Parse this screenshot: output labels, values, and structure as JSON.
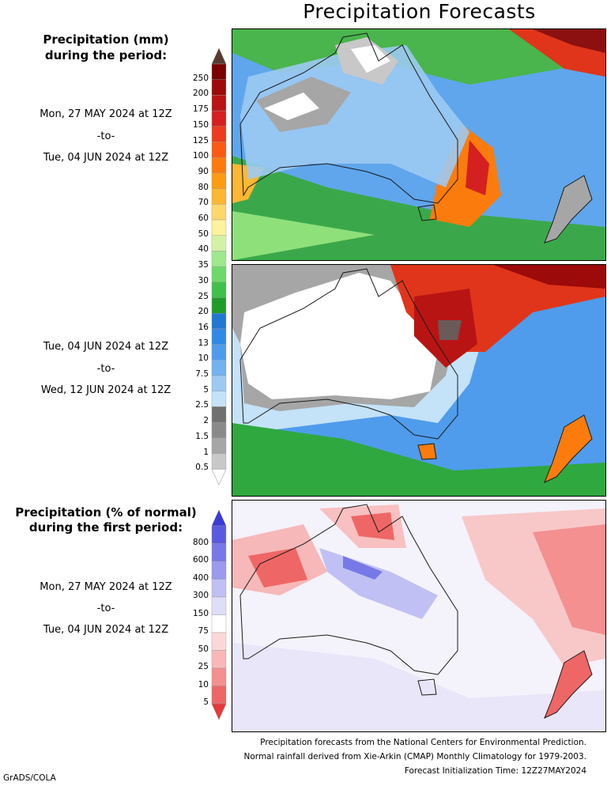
{
  "title": "Precipitation Forecasts",
  "panel1": {
    "legend_head_1": "Precipitation (mm)",
    "legend_head_2": "during the period:",
    "start": "Mon, 27 MAY 2024 at 12Z",
    "sep": "-to-",
    "end": "Tue, 04 JUN 2024 at 12Z"
  },
  "panel2": {
    "start": "Tue, 04 JUN 2024 at 12Z",
    "sep": "-to-",
    "end": "Wed, 12 JUN 2024 at 12Z"
  },
  "panel3": {
    "legend_head_1": "Precipitation (% of normal)",
    "legend_head_2": "during the first period:",
    "start": "Mon, 27 MAY 2024 at 12Z",
    "sep": "-to-",
    "end": "Tue, 04 JUN 2024 at 12Z"
  },
  "mm_scale": {
    "labels": [
      "250",
      "200",
      "175",
      "150",
      "125",
      "100",
      "90",
      "80",
      "70",
      "60",
      "50",
      "40",
      "35",
      "30",
      "25",
      "20",
      "16",
      "13",
      "10",
      "7.5",
      "5",
      "2.5",
      "2",
      "1.5",
      "1",
      "0.5"
    ],
    "colors": [
      "#7a0000",
      "#9c0a0a",
      "#b91414",
      "#d42020",
      "#ec3b1d",
      "#fb5a14",
      "#fb7c0c",
      "#fb9c12",
      "#fdb733",
      "#fed76a",
      "#fdf29d",
      "#d4f2a4",
      "#9fe88d",
      "#6ed96a",
      "#3fc04c",
      "#1f9c2a",
      "#1f78d2",
      "#2f8ae6",
      "#4f9cec",
      "#72b2f0",
      "#9ccaf3",
      "#c4e2f8",
      "#707070",
      "#8a8a8a",
      "#a6a6a6",
      "#c8c8c8"
    ],
    "top_cap_color": "#5a3a30"
  },
  "pct_scale": {
    "labels": [
      "800",
      "600",
      "400",
      "300",
      "150",
      "75",
      "50",
      "25",
      "10",
      "5"
    ],
    "colors": [
      "#5a5ae0",
      "#7878e8",
      "#9a9aee",
      "#c0c0f4",
      "#dedef8",
      "#ffffff",
      "#fbd8d8",
      "#f8b8b8",
      "#f49090",
      "#ef6666"
    ],
    "top_cap_color": "#3a3ad8",
    "bottom_cap_color": "#e8383c"
  },
  "footer": {
    "line1": "Precipitation forecasts from the National Centers for Environmental Prediction.",
    "line2": "Normal rainfall derived from Xie-Arkin (CMAP) Monthly Climatology for 1979-2003.",
    "line3": "Forecast Initialization Time: 12Z27MAY2024"
  },
  "credit": "GrADS/COLA"
}
